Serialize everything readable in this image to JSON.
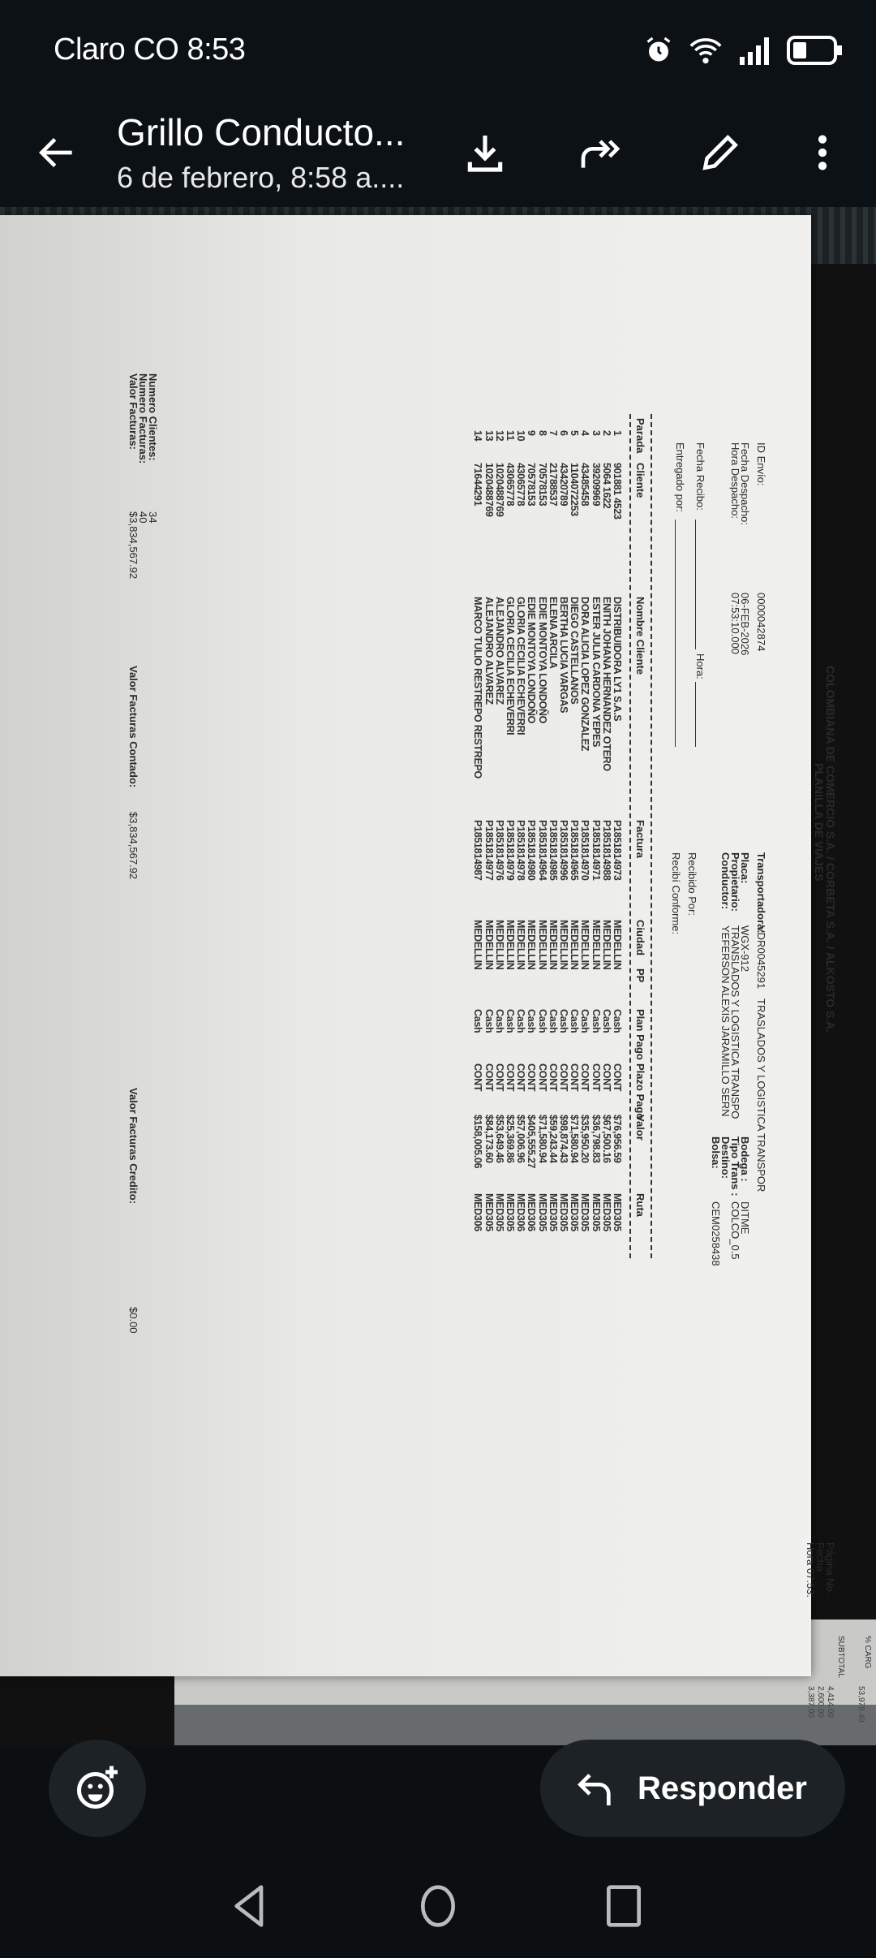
{
  "status_bar": {
    "carrier": "Claro CO",
    "time": "8:53",
    "icons": [
      "alarm-icon",
      "wifi-icon",
      "signal-icon",
      "battery-icon"
    ],
    "battery_level": 0.3
  },
  "header": {
    "title": "Grillo Conducto...",
    "subtitle": "6 de febrero, 8:58 a....",
    "actions": [
      "download-icon",
      "forward-icon",
      "edit-icon",
      "more-icon"
    ]
  },
  "document": {
    "company": "COLOMBIANA DE COMERCIO S.A. / CORBETA S.A. / ALKOSTO S.A.",
    "doc_title": "PLANILLA DE VIAJES",
    "page_label": "Página No.",
    "fecha_label": "Fecha",
    "hora_label": "Hora",
    "hora_value": "07:53:",
    "id_envio_label": "ID Envío:",
    "id_envio": "0000042874",
    "fecha_despacho_label": "Fecha Despacho:",
    "fecha_despacho": "06-FEB-2026",
    "hora_despacho_label": "Hora Despacho:",
    "hora_despacho": "07:53:10.000",
    "fecha_recibo_label": "Fecha Recibo:",
    "hora_label2": "Hora:",
    "entregado_label": "Entregado por:",
    "transportadora_label": "Transportadora:",
    "transportadora_code": "VDR0045291",
    "transportadora": "TRASLADOS Y LOGISTICA TRANSPOR",
    "placa_label": "Placa:",
    "placa": "WGX-912",
    "propietario_label": "Propietario:",
    "propietario": "TRANSLADOS Y LOGISTICA TRANSPO",
    "conductor_label": "Conductor:",
    "conductor": "YEFERSON ALEXIS JARAMILLO SERN",
    "recibido_label": "Recibido Por:",
    "recibi_label": "Recibí Conforme:",
    "bodega_label": "Bodega :",
    "bodega": "DITME",
    "tipo_label": "Tipo Trans :",
    "tipo": "COLCO_0.5",
    "destino_label": "Destino:",
    "bolsa_label": "Bolsa:",
    "bolsa": "CEM0258438",
    "columns": [
      "Parada",
      "Cliente",
      "Nombre Cliente",
      "Factura",
      "Ciudad",
      "PP",
      "Plan Pago",
      "Plazo Pago",
      "Valor",
      "Ruta"
    ],
    "rows": [
      [
        "1",
        "901881 4523",
        "DISTRIBUIDORA LY1 S.A.S",
        "P1851814973",
        "MEDELLIN",
        "",
        "Cash",
        "CONT",
        "$76,956.59",
        "MED305"
      ],
      [
        "2",
        "5064 1622",
        "ENITH JOHANA HERNANDEZ OTERO",
        "P1851814988",
        "MEDELLIN",
        "",
        "Cash",
        "CONT",
        "$67,500.16",
        "MED305"
      ],
      [
        "3",
        "39209969",
        "ESTER JULIA CARDONA YEPES",
        "P1851814971",
        "MEDELLIN",
        "",
        "Cash",
        "CONT",
        "$36,798.83",
        "MED305"
      ],
      [
        "4",
        "43485458",
        "DORA ALICIA LOPEZ GONZALEZ",
        "P1851814970",
        "MEDELLIN",
        "",
        "Cash",
        "CONT",
        "$35,950.20",
        "MED305"
      ],
      [
        "5",
        "1104072253",
        "DIEGO CASTELLANOS",
        "P1851814965",
        "MEDELLIN",
        "",
        "Cash",
        "CONT",
        "$71,580.94",
        "MED305"
      ],
      [
        "6",
        "43420789",
        "BERTHA LUCIA VARGAS",
        "P1851814996",
        "MEDELLIN",
        "",
        "Cash",
        "CONT",
        "$98,874.43",
        "MED305"
      ],
      [
        "7",
        "21788537",
        "ELENA ARCILA",
        "P1851814985",
        "MEDELLIN",
        "",
        "Cash",
        "CONT",
        "$59,243.44",
        "MED305"
      ],
      [
        "8",
        "70578153",
        "EDIE MONTOYA LONDOÑO",
        "P1851814964",
        "MEDELLIN",
        "",
        "Cash",
        "CONT",
        "$71,580.94",
        "MED305"
      ],
      [
        "9",
        "70578153",
        "EDIE MONTOYA LONDOÑO",
        "P1851814980",
        "MEDELLIN",
        "",
        "Cash",
        "CONT",
        "$405,555.27",
        "MED306"
      ],
      [
        "10",
        "43065778",
        "GLORIA CECILIA ECHEVERRI",
        "P1851814978",
        "MEDELLIN",
        "",
        "Cash",
        "CONT",
        "$57,006.96",
        "MED306"
      ],
      [
        "11",
        "43065778",
        "GLORIA CECILIA ECHEVERRI",
        "P1851814979",
        "MEDELLIN",
        "",
        "Cash",
        "CONT",
        "$25,369.86",
        "MED305"
      ],
      [
        "12",
        "1020488769",
        "ALEJANDRO ALVAREZ",
        "P1851814976",
        "MEDELLIN",
        "",
        "Cash",
        "CONT",
        "$53,649.46",
        "MED305"
      ],
      [
        "13",
        "1020488769",
        "ALEJANDRO ALVAREZ",
        "P1851814977",
        "MEDELLIN",
        "",
        "Cash",
        "CONT",
        "$84,173.60",
        "MED305"
      ],
      [
        "14",
        "71644291",
        "MARCO TULIO RESTREPO RESTREPO",
        "P1851814987",
        "MEDELLIN",
        "",
        "Cash",
        "CONT",
        "$158,005.06",
        "MED306"
      ]
    ],
    "numero_clientes_label": "Numero Clientes:",
    "numero_clientes": "34",
    "numero_facturas_label": "Numero Facturas:",
    "numero_facturas": "40",
    "valor_facturas_label": "Valor Facturas:",
    "valor_facturas": "$3,834,567.92",
    "contado_label": "Valor Facturas Contado:",
    "contado": "$3,834,567.92",
    "credito_label": "Valor Facturas Credito:",
    "credito": "$0.00"
  },
  "second_paper": {
    "subtotal_label": "SUBTOTAL",
    "carg_label": "% CARG",
    "values": [
      "4,414.00",
      "2,600.00",
      "3,387.00",
      "53,978.40"
    ]
  },
  "footer": {
    "reply_label": "Responder"
  }
}
